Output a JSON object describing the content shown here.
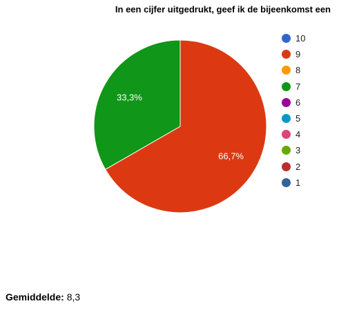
{
  "chart_data": {
    "type": "pie",
    "title": "In een cijfer uitgedrukt, geef ik de bijeenkomst een",
    "legend_position": "right",
    "slices": [
      {
        "label": "9",
        "value": 66.7,
        "display": "66,7%",
        "color": "#dc3912"
      },
      {
        "label": "7",
        "value": 33.3,
        "display": "33,3%",
        "color": "#109618"
      }
    ],
    "legend": [
      {
        "label": "10",
        "color": "#3366cc"
      },
      {
        "label": "9",
        "color": "#dc3912"
      },
      {
        "label": "8",
        "color": "#ff9900"
      },
      {
        "label": "7",
        "color": "#109618"
      },
      {
        "label": "6",
        "color": "#990099"
      },
      {
        "label": "5",
        "color": "#0099c6"
      },
      {
        "label": "4",
        "color": "#dd4477"
      },
      {
        "label": "3",
        "color": "#66aa00"
      },
      {
        "label": "2",
        "color": "#b82e2e"
      },
      {
        "label": "1",
        "color": "#316395"
      }
    ]
  },
  "summary": {
    "label": "Gemiddelde:",
    "value": "8,3"
  }
}
